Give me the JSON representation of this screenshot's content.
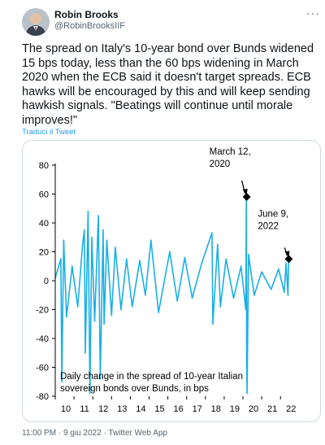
{
  "author": {
    "name": "Robin Brooks",
    "handle": "@RobinBrooksIIF",
    "more_icon": "more-dots-icon"
  },
  "tweet": {
    "text": "The spread on Italy's 10-year bond over Bunds widened 15 bps today, less than the 60 bps widening in March 2020 when the ECB said it doesn't target spreads. ECB hawks will be encouraged by this and will keep sending hawkish signals. \"Beatings will continue until morale improves!\"",
    "translate_label": "Traduci il Tweet"
  },
  "footer": {
    "time": "11:00 PM",
    "sep1": " · ",
    "date": "9 giu 2022",
    "sep2": " · ",
    "app": "Twitter Web App"
  },
  "colors": {
    "series": "#1aafe6",
    "link": "#1d9bf0",
    "marker": "#000000"
  },
  "chart_data": {
    "type": "line",
    "title": "",
    "caption_lines": [
      "Daily change in the spread of 10-year Italian",
      "sovereign bonds over Bunds, in bps"
    ],
    "xlabel": "",
    "ylabel": "",
    "xlim": [
      2010,
      2022.9
    ],
    "ylim": [
      -80,
      80
    ],
    "x_ticks": [
      "10",
      "11",
      "12",
      "13",
      "14",
      "15",
      "16",
      "17",
      "18",
      "19",
      "20",
      "21",
      "22"
    ],
    "y_ticks": [
      "80",
      "60",
      "40",
      "20",
      "0",
      "-20",
      "-40",
      "-60",
      "-80"
    ],
    "series": [
      {
        "x": [
          2010.0,
          2010.3,
          2010.35,
          2010.45,
          2010.6,
          2010.9,
          2011.2,
          2011.45,
          2011.55,
          2011.6,
          2011.75,
          2011.85,
          2011.95,
          2012.1,
          2012.3,
          2012.4,
          2012.55,
          2012.6,
          2012.75,
          2013.0,
          2013.2,
          2013.5,
          2013.8,
          2014.1,
          2014.5,
          2014.8,
          2015.1,
          2015.5,
          2016.1,
          2016.5,
          2016.9,
          2017.3,
          2017.8,
          2018.35,
          2018.4,
          2018.65,
          2018.8,
          2019.1,
          2019.5,
          2019.9,
          2020.15,
          2020.18,
          2020.2,
          2020.22,
          2020.3,
          2020.6,
          2021.0,
          2021.5,
          2021.9,
          2022.2,
          2022.3,
          2022.4,
          2022.44
        ],
        "y": [
          2,
          15,
          -70,
          28,
          -25,
          10,
          -18,
          24,
          35,
          -50,
          48,
          -78,
          30,
          -28,
          45,
          -68,
          35,
          -30,
          28,
          -24,
          23,
          -20,
          15,
          -18,
          14,
          -10,
          28,
          -22,
          20,
          -14,
          16,
          -12,
          12,
          33,
          -30,
          25,
          -18,
          15,
          -12,
          10,
          -20,
          58,
          -55,
          -78,
          18,
          -10,
          6,
          -6,
          8,
          -8,
          12,
          -10,
          15
        ]
      }
    ],
    "annotations": [
      {
        "text_lines": [
          "March 12,",
          "2020"
        ],
        "x": 2020.2,
        "y": 58
      },
      {
        "text_lines": [
          "June 9,",
          "2022"
        ],
        "x": 2022.44,
        "y": 15
      }
    ],
    "grid": false,
    "legend": "none"
  }
}
